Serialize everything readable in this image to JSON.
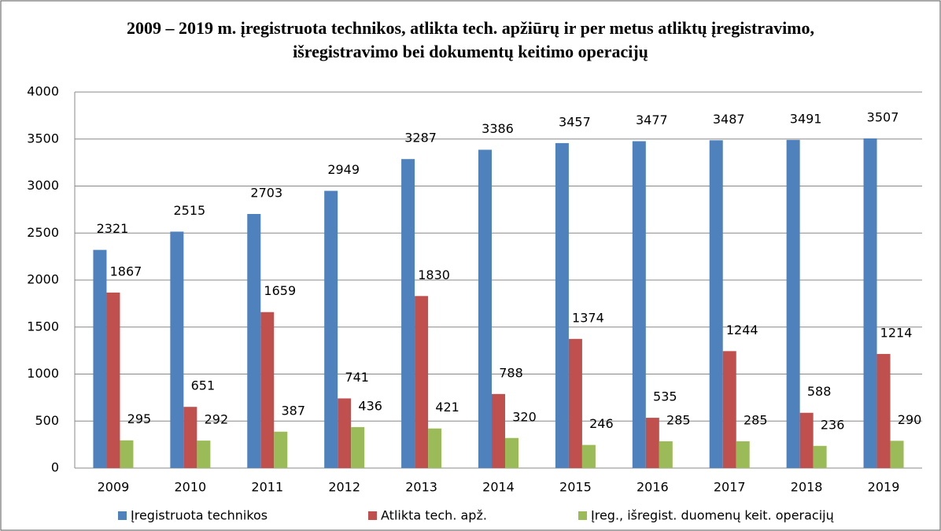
{
  "chart_data": {
    "type": "bar",
    "title": [
      "2009 – 2019 m. įregistruota technikos, atlikta tech. apžiūrų ir per metus atliktų įregistravimo,",
      "išregistravimo bei dokumentų keitimo operacijų"
    ],
    "categories": [
      "2009",
      "2010",
      "2011",
      "2012",
      "2013",
      "2014",
      "2015",
      "2016",
      "2017",
      "2018",
      "2019"
    ],
    "series": [
      {
        "name": "Įregistruota technikos",
        "color": "#4f81bd",
        "values": [
          2321,
          2515,
          2703,
          2949,
          3287,
          3386,
          3457,
          3477,
          3487,
          3491,
          3507
        ]
      },
      {
        "name": "Atlikta tech. apž.",
        "color": "#c0504d",
        "values": [
          1867,
          651,
          1659,
          741,
          1830,
          788,
          1374,
          535,
          1244,
          588,
          1214
        ]
      },
      {
        "name": "Įreg., išregist. duomenų keit. operacijų",
        "color": "#9bbb59",
        "values": [
          295,
          292,
          387,
          436,
          421,
          320,
          246,
          285,
          285,
          236,
          290
        ]
      }
    ],
    "ylim": [
      0,
      4000
    ],
    "yticks": [
      0,
      500,
      1000,
      1500,
      2000,
      2500,
      3000,
      3500,
      4000
    ],
    "grid": true,
    "legend": "bottom"
  }
}
